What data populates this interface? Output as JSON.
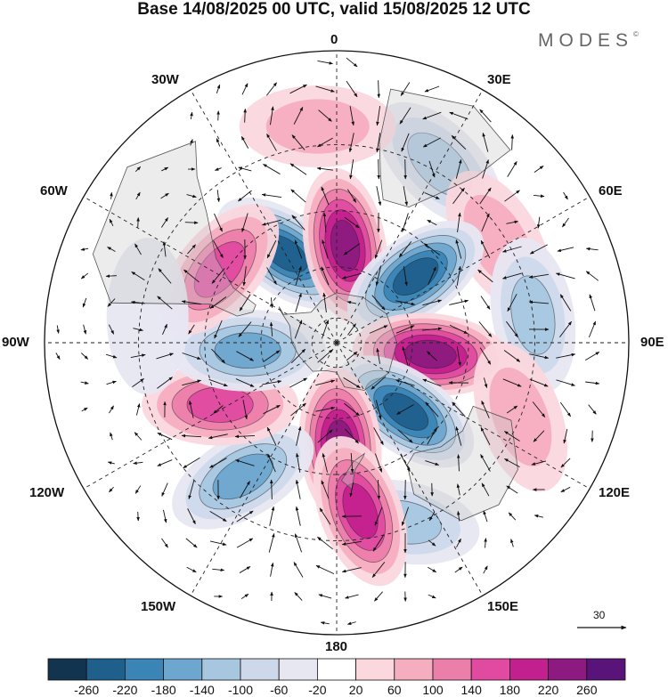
{
  "header": {
    "title": "Base 14/08/2025 00 UTC, valid 15/08/2025 12 UTC",
    "brand": "MODES",
    "brand_mark": "©"
  },
  "map": {
    "projection": "south-polar-stereographic",
    "longitude_labels": {
      "north": "0",
      "ne1": "30E",
      "ne2": "60E",
      "east": "90E",
      "se1": "120E",
      "se2": "150E",
      "south": "180",
      "sw1": "150W",
      "sw2": "120W",
      "west": "90W",
      "nw2": "60W",
      "nw1": "30W"
    },
    "reference_vector": {
      "value": "30"
    }
  },
  "colorbar": {
    "colors": [
      "#13344f",
      "#1f5f8c",
      "#3a84b6",
      "#6da7cf",
      "#a7c7e1",
      "#cdd9eb",
      "#e7e7f2",
      "#ffffff",
      "#fbd7de",
      "#f5aec0",
      "#ec7eaa",
      "#e04aa0",
      "#c3208f",
      "#8c1a80",
      "#5a1378"
    ],
    "ticks": [
      "-260",
      "-220",
      "-180",
      "-140",
      "-100",
      "-60",
      "-20",
      "20",
      "60",
      "100",
      "140",
      "180",
      "220",
      "260"
    ]
  },
  "anomaly_cells": [
    {
      "name": "blue-cell-south-atlantic",
      "lon": -30,
      "lat": -50,
      "strength": -270,
      "rot": 35
    },
    {
      "name": "magenta-cell-greenwich",
      "lon": 5,
      "lat": -52,
      "strength": 240,
      "rot": 80
    },
    {
      "name": "pale-blue-cell-north",
      "lon": 30,
      "lat": -18,
      "strength": -140,
      "rot": 45
    },
    {
      "name": "pink-cell-africa",
      "lon": 58,
      "lat": -22,
      "strength": 110,
      "rot": 60
    },
    {
      "name": "blue-cell-indian-west",
      "lon": 50,
      "lat": -50,
      "strength": -260,
      "rot": -35
    },
    {
      "name": "blue-cell-indian-east",
      "lon": 82,
      "lat": -20,
      "strength": -150,
      "rot": 80
    },
    {
      "name": "purple-cell-indian",
      "lon": 97,
      "lat": -53,
      "strength": 260,
      "rot": 5
    },
    {
      "name": "pink-cell-australia",
      "lon": 112,
      "lat": -20,
      "strength": 90,
      "rot": 70
    },
    {
      "name": "blue-cell-australia-south",
      "lon": 135,
      "lat": -52,
      "strength": -250,
      "rot": 35
    },
    {
      "name": "pale-blue-cell-tasman",
      "lon": 160,
      "lat": -22,
      "strength": -120,
      "rot": 10
    },
    {
      "name": "magenta-cell-nz-north",
      "lon": 178,
      "lat": -50,
      "strength": 250,
      "rot": 85
    },
    {
      "name": "magenta-cell-nz-south",
      "lon": 172,
      "lat": -28,
      "strength": 210,
      "rot": 70
    },
    {
      "name": "blue-cell-south-pacific",
      "lon": -145,
      "lat": -30,
      "strength": -180,
      "rot": -30
    },
    {
      "name": "magenta-cell-pacific",
      "lon": -118,
      "lat": -40,
      "strength": 190,
      "rot": 0
    },
    {
      "name": "blue-cell-amundsen",
      "lon": -95,
      "lat": -55,
      "strength": -190,
      "rot": 0
    },
    {
      "name": "pink-cell-south-america",
      "lon": -58,
      "lat": -38,
      "strength": 160,
      "rot": -50
    },
    {
      "name": "pale-blue-cell-chile",
      "lon": -82,
      "lat": -22,
      "strength": -60,
      "rot": 90
    },
    {
      "name": "pink-cell-north-atlantic",
      "lon": -5,
      "lat": -15,
      "strength": 110,
      "rot": 0
    }
  ]
}
